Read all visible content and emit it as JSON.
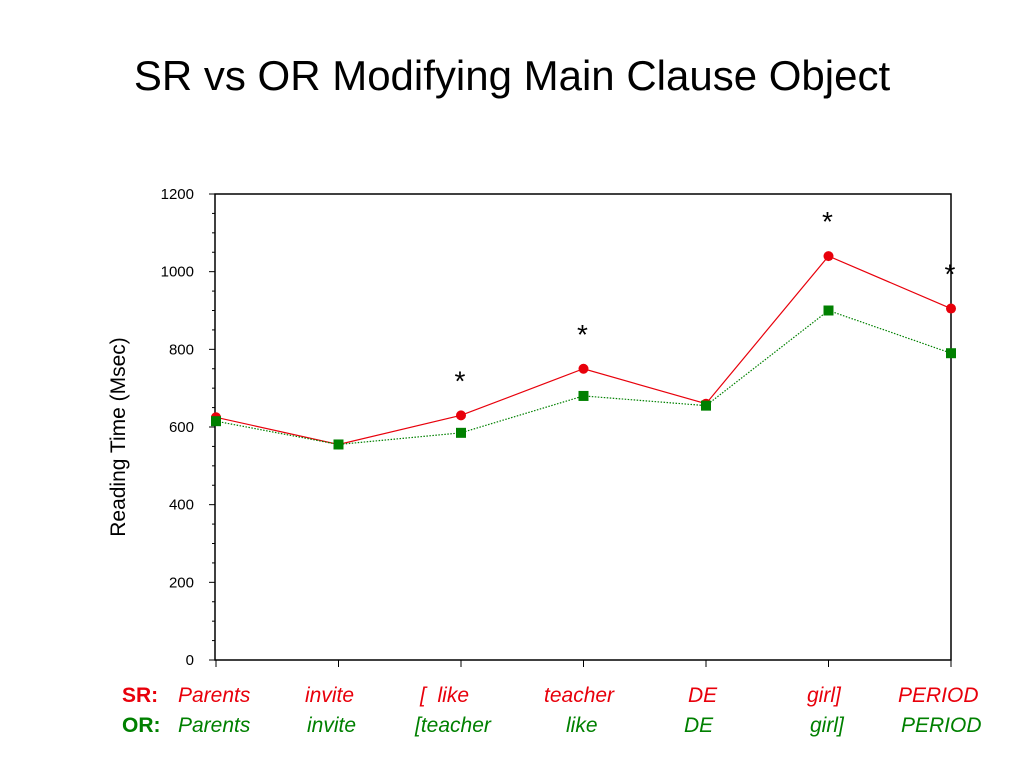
{
  "title": "SR vs OR Modifying Main Clause Object",
  "chart_data": {
    "type": "line",
    "ylabel": "Reading Time (Msec)",
    "ylim": [
      0,
      1200
    ],
    "yticks": [
      "0",
      "200",
      "400",
      "600",
      "800",
      "1000",
      "1200"
    ],
    "x_positions": 7,
    "series": [
      {
        "name": "SR",
        "color": "#e8000b",
        "marker": "circle",
        "line_style": "solid",
        "values": [
          625,
          555,
          630,
          750,
          660,
          1040,
          905
        ]
      },
      {
        "name": "OR",
        "color": "#008000",
        "marker": "square",
        "line_style": "dotted",
        "values": [
          615,
          555,
          585,
          680,
          655,
          900,
          790
        ]
      }
    ],
    "significance_markers": [
      {
        "index": 2,
        "symbol": "*"
      },
      {
        "index": 3,
        "symbol": "*"
      },
      {
        "index": 5,
        "symbol": "*"
      },
      {
        "index": 6,
        "symbol": "*"
      }
    ]
  },
  "captions": {
    "sr": {
      "label": "SR:",
      "words": [
        "Parents",
        "invite",
        "[  like",
        "teacher",
        "DE",
        "girl]",
        "PERIOD"
      ]
    },
    "or": {
      "label": "OR:",
      "words": [
        "Parents",
        "invite",
        "[teacher",
        "like",
        "DE",
        "girl]",
        "PERIOD"
      ]
    }
  }
}
